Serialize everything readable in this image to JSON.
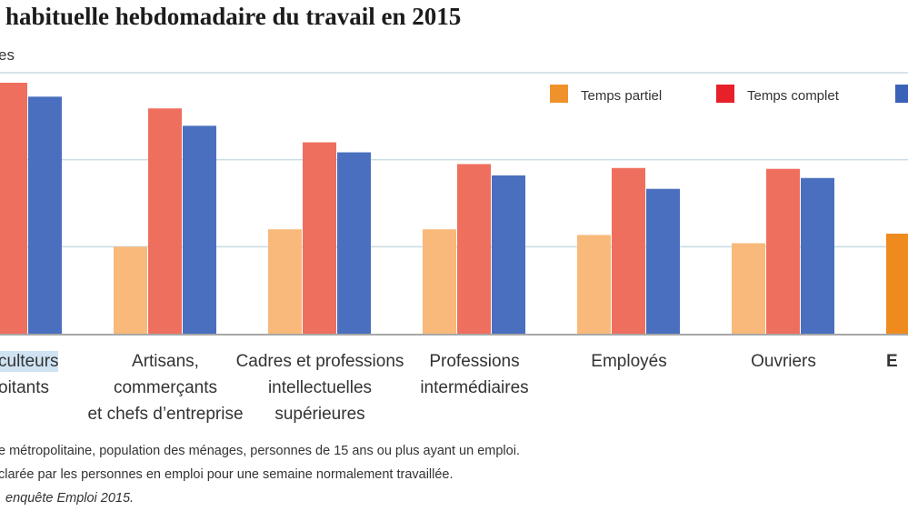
{
  "chart_data": {
    "type": "bar",
    "title": "habituelle hebdomadaire du travail en 2015",
    "ylabel": "es",
    "ylim": [
      0,
      60
    ],
    "grid": true,
    "legend_position": "top-right",
    "categories": [
      [
        "culteurs",
        "oitants"
      ],
      [
        "Artisans,",
        "commerçants",
        "et chefs d’entreprise"
      ],
      [
        "Cadres et professions",
        "intellectuelles",
        "supérieures"
      ],
      [
        "Professions",
        "intermédiaires"
      ],
      [
        "Employés"
      ],
      [
        "Ouvriers"
      ],
      [
        "E"
      ]
    ],
    "series": [
      {
        "name": "Temps partiel",
        "color": "#F8B97A",
        "legend_color": "#F0922B",
        "values": [
          null,
          20,
          24,
          24,
          22.7,
          20.8,
          23
        ]
      },
      {
        "name": "Temps complet",
        "color": "#EF6F5E",
        "legend_color": "#E8202A",
        "values": [
          57.7,
          51.8,
          44,
          39,
          38.1,
          37.9,
          null
        ]
      },
      {
        "name": "",
        "color": "#4A6FBE",
        "legend_color": "#3A62B8",
        "values": [
          54.5,
          47.8,
          41.7,
          36.4,
          33.3,
          35.8,
          null
        ]
      }
    ],
    "highlight_color": "#EE8A1E",
    "notes": [
      "e métropolitaine, population des ménages, personnes de 15 ans ou plus ayant un emploi.",
      "clarée par les personnes en emploi pour une semaine normalement travaillée.",
      "enquête Emploi 2015."
    ]
  }
}
